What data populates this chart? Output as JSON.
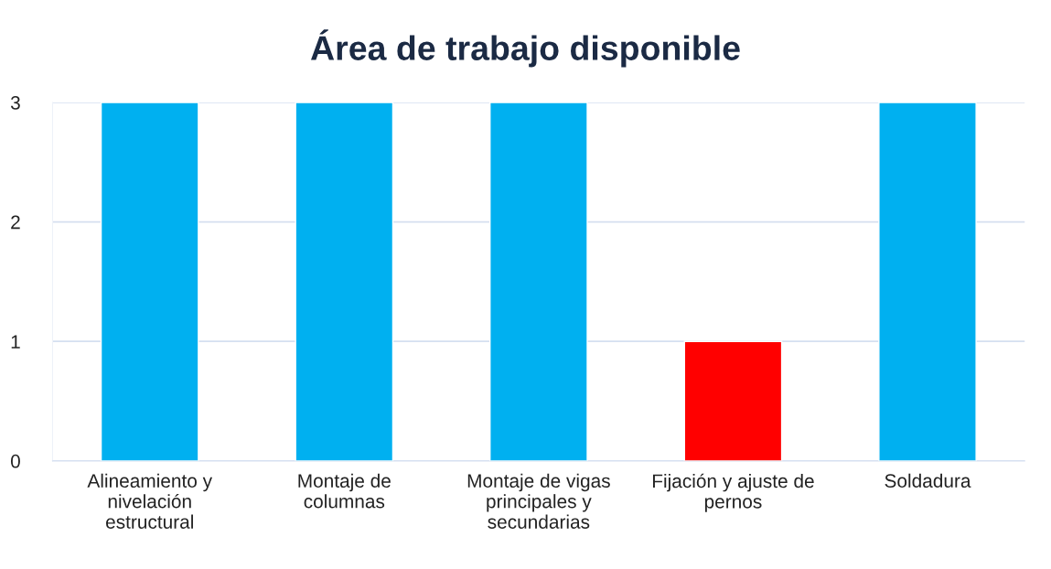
{
  "chart_data": {
    "type": "bar",
    "title": "Área de trabajo disponible",
    "categories": [
      "Alineamiento y\nnivelación\nestructural",
      "Montaje de\ncolumnas",
      "Montaje de vigas\nprincipales y\nsecundarias",
      "Fijación y ajuste de\npernos",
      "Soldadura"
    ],
    "values": [
      3,
      3,
      3,
      1,
      3
    ],
    "colors": [
      "#00b0f0",
      "#00b0f0",
      "#00b0f0",
      "#ff0000",
      "#00b0f0"
    ],
    "ylim": [
      0,
      3
    ],
    "yticks": [
      0,
      1,
      2,
      3
    ],
    "grid": "y",
    "legend": false
  }
}
